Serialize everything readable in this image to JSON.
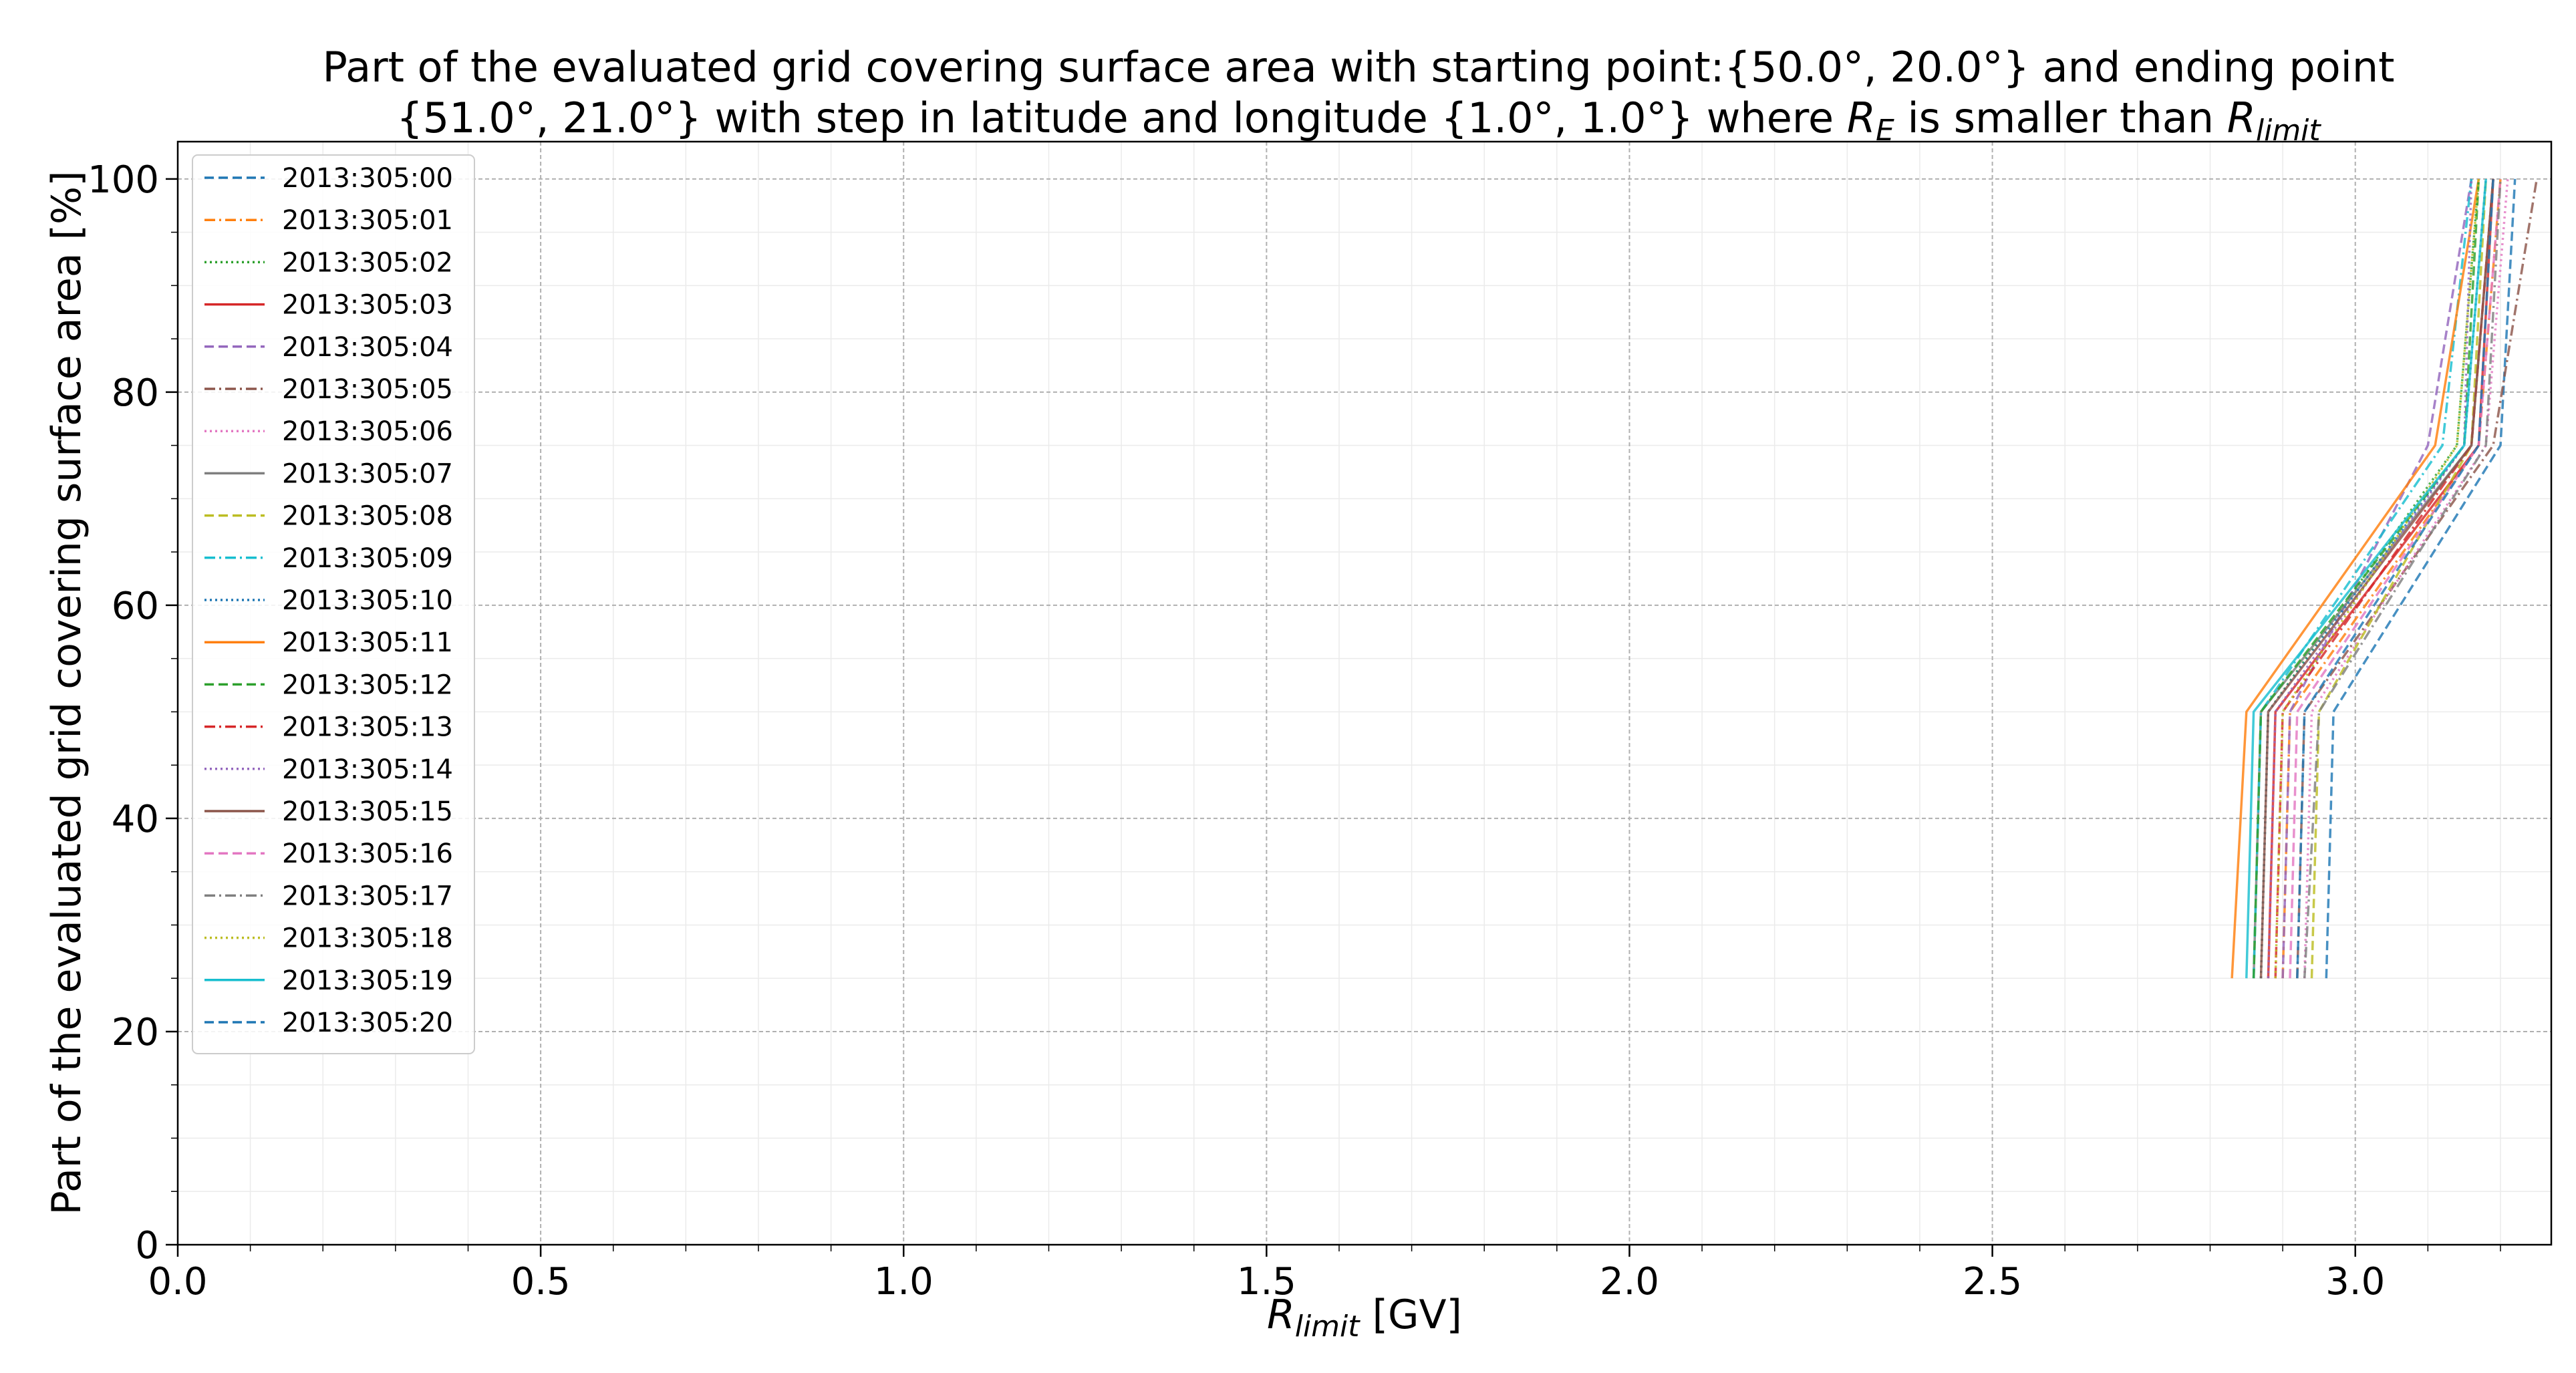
{
  "chart_data": {
    "type": "line",
    "title_parts": {
      "line1": "Part of the evaluated grid covering surface area with starting point:{50.0°, 20.0°} and ending point",
      "line2_pre": "{51.0°, 21.0°} with step in latitude and longitude {1.0°, 1.0°} where ",
      "re_main": "R",
      "re_sub": "E",
      "mid": " is smaller than ",
      "rl_main": "R",
      "rl_sub": "limit"
    },
    "xlabel_parts": {
      "main": "R",
      "sub": "limit",
      "rest": " [GV]"
    },
    "ylabel": "Part of the evaluated grid covering surface area  [%]",
    "xlim": [
      0.0,
      3.27
    ],
    "ylim": [
      0,
      103.5
    ],
    "x_ticks": [
      0.0,
      0.5,
      1.0,
      1.5,
      2.0,
      2.5,
      3.0
    ],
    "x_tick_labels": [
      "0.0",
      "0.5",
      "1.0",
      "1.5",
      "2.0",
      "2.5",
      "3.0"
    ],
    "y_ticks": [
      0,
      20,
      40,
      60,
      80,
      100
    ],
    "y_tick_labels": [
      "0",
      "20",
      "40",
      "60",
      "80",
      "100"
    ],
    "grid": true,
    "legend_position": "upper-left",
    "y": [
      25,
      50,
      75,
      100
    ],
    "series": [
      {
        "name": "2013:305:00",
        "color": "#1f77b4",
        "dash": "dashed",
        "x": [
          2.96,
          2.97,
          3.2,
          3.22
        ]
      },
      {
        "name": "2013:305:01",
        "color": "#ff7f0e",
        "dash": "dashdot",
        "x": [
          2.9,
          2.91,
          3.17,
          3.2
        ]
      },
      {
        "name": "2013:305:02",
        "color": "#2ca02c",
        "dash": "dotted",
        "x": [
          2.87,
          2.88,
          3.14,
          3.17
        ]
      },
      {
        "name": "2013:305:03",
        "color": "#d62728",
        "dash": "solid",
        "x": [
          2.88,
          2.89,
          3.17,
          3.19
        ]
      },
      {
        "name": "2013:305:04",
        "color": "#9467bd",
        "dash": "dashed",
        "x": [
          2.9,
          2.91,
          3.1,
          3.16
        ]
      },
      {
        "name": "2013:305:05",
        "color": "#8c564b",
        "dash": "dashdot",
        "x": [
          2.92,
          2.93,
          3.19,
          3.25
        ]
      },
      {
        "name": "2013:305:06",
        "color": "#e377c2",
        "dash": "dotted",
        "x": [
          2.93,
          2.94,
          3.18,
          3.21
        ]
      },
      {
        "name": "2013:305:07",
        "color": "#7f7f7f",
        "dash": "solid",
        "x": [
          2.86,
          2.87,
          3.16,
          3.19
        ]
      },
      {
        "name": "2013:305:08",
        "color": "#bcbd22",
        "dash": "dashed",
        "x": [
          2.94,
          2.95,
          3.16,
          3.18
        ]
      },
      {
        "name": "2013:305:09",
        "color": "#17becf",
        "dash": "dashdot",
        "x": [
          2.86,
          2.87,
          3.12,
          3.16
        ]
      },
      {
        "name": "2013:305:10",
        "color": "#1f77b4",
        "dash": "dotted",
        "x": [
          2.87,
          2.88,
          3.15,
          3.18
        ]
      },
      {
        "name": "2013:305:11",
        "color": "#ff7f0e",
        "dash": "solid",
        "x": [
          2.83,
          2.85,
          3.11,
          3.17
        ]
      },
      {
        "name": "2013:305:12",
        "color": "#2ca02c",
        "dash": "dashed",
        "x": [
          2.86,
          2.87,
          3.15,
          3.17
        ]
      },
      {
        "name": "2013:305:13",
        "color": "#d62728",
        "dash": "dashdot",
        "x": [
          2.89,
          2.9,
          3.16,
          3.19
        ]
      },
      {
        "name": "2013:305:14",
        "color": "#9467bd",
        "dash": "dotted",
        "x": [
          2.88,
          2.89,
          3.15,
          3.16
        ]
      },
      {
        "name": "2013:305:15",
        "color": "#8c564b",
        "dash": "solid",
        "x": [
          2.87,
          2.88,
          3.16,
          3.19
        ]
      },
      {
        "name": "2013:305:16",
        "color": "#e377c2",
        "dash": "dashed",
        "x": [
          2.91,
          2.92,
          3.17,
          3.2
        ]
      },
      {
        "name": "2013:305:17",
        "color": "#7f7f7f",
        "dash": "dashdot",
        "x": [
          2.93,
          2.95,
          3.18,
          3.2
        ]
      },
      {
        "name": "2013:305:18",
        "color": "#bcbd22",
        "dash": "dotted",
        "x": [
          2.89,
          2.9,
          3.14,
          3.17
        ]
      },
      {
        "name": "2013:305:19",
        "color": "#17becf",
        "dash": "solid",
        "x": [
          2.85,
          2.86,
          3.15,
          3.18
        ]
      },
      {
        "name": "2013:305:20",
        "color": "#1f77b4",
        "dash": "dashed",
        "x": [
          2.92,
          2.93,
          3.17,
          3.19
        ]
      }
    ]
  }
}
